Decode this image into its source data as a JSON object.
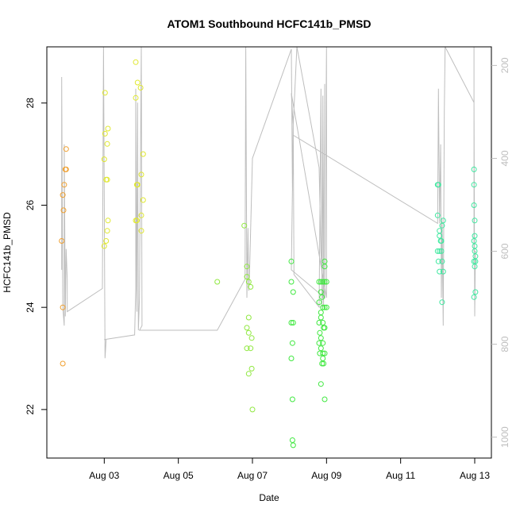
{
  "chart_data": {
    "type": "scatter",
    "title": "ATOM1 Southbound HCFC141b_PMSD",
    "xlabel": "Date",
    "ylabel": "HCFC141b_PMSD",
    "xlim": [
      1.45,
      13.45
    ],
    "ylim": [
      21.05,
      29.1
    ],
    "y2lim": [
      1045,
      160
    ],
    "x_ticks": [
      {
        "value": 3,
        "label": "Aug 03"
      },
      {
        "value": 5,
        "label": "Aug 05"
      },
      {
        "value": 7,
        "label": "Aug 07"
      },
      {
        "value": 9,
        "label": "Aug 09"
      },
      {
        "value": 11,
        "label": "Aug 11"
      },
      {
        "value": 13,
        "label": "Aug 13"
      }
    ],
    "y_ticks": [
      {
        "value": 22,
        "label": "22"
      },
      {
        "value": 24,
        "label": "24"
      },
      {
        "value": 26,
        "label": "26"
      },
      {
        "value": 28,
        "label": "28"
      }
    ],
    "y2_ticks": [
      {
        "value": 200,
        "label": "200"
      },
      {
        "value": 400,
        "label": "400"
      },
      {
        "value": 600,
        "label": "600"
      },
      {
        "value": 800,
        "label": "800"
      },
      {
        "value": 1000,
        "label": "1000"
      }
    ],
    "point_series": [
      {
        "color": "#f0a030",
        "points": [
          [
            1.88,
            22.9
          ],
          [
            1.88,
            24.0
          ],
          [
            1.85,
            25.3
          ],
          [
            1.9,
            25.9
          ],
          [
            1.88,
            26.2
          ],
          [
            1.92,
            26.4
          ],
          [
            1.95,
            26.7
          ],
          [
            1.97,
            26.7
          ],
          [
            1.97,
            27.1
          ]
        ]
      },
      {
        "color": "#e0e830",
        "points": [
          [
            3.0,
            25.2
          ],
          [
            3.05,
            25.3
          ],
          [
            3.08,
            25.5
          ],
          [
            3.1,
            25.7
          ],
          [
            3.05,
            26.5
          ],
          [
            3.08,
            26.5
          ],
          [
            3.0,
            26.9
          ],
          [
            3.08,
            27.2
          ],
          [
            3.02,
            27.4
          ],
          [
            3.1,
            27.5
          ],
          [
            3.02,
            28.2
          ],
          [
            3.85,
            25.7
          ],
          [
            3.88,
            25.7
          ],
          [
            4.0,
            25.5
          ],
          [
            4.0,
            25.8
          ],
          [
            4.05,
            26.1
          ],
          [
            3.9,
            26.4
          ],
          [
            3.88,
            26.4
          ],
          [
            4.0,
            26.6
          ],
          [
            4.05,
            27.0
          ],
          [
            3.85,
            28.1
          ],
          [
            3.9,
            28.4
          ],
          [
            3.98,
            28.3
          ],
          [
            3.85,
            28.8
          ]
        ]
      },
      {
        "color": "#90e840",
        "points": [
          [
            6.05,
            24.5
          ],
          [
            6.78,
            25.6
          ],
          [
            6.85,
            24.8
          ],
          [
            6.85,
            24.6
          ],
          [
            6.9,
            24.5
          ],
          [
            6.95,
            24.4
          ],
          [
            6.9,
            23.8
          ],
          [
            6.85,
            23.6
          ],
          [
            6.9,
            23.5
          ],
          [
            6.98,
            23.4
          ],
          [
            6.85,
            23.2
          ],
          [
            6.95,
            23.2
          ],
          [
            6.98,
            22.8
          ],
          [
            6.9,
            22.7
          ],
          [
            7.0,
            22.0
          ]
        ]
      },
      {
        "color": "#40e840",
        "points": [
          [
            8.05,
            24.9
          ],
          [
            8.05,
            24.5
          ],
          [
            8.1,
            24.3
          ],
          [
            8.05,
            23.7
          ],
          [
            8.1,
            23.7
          ],
          [
            8.08,
            23.3
          ],
          [
            8.05,
            23.0
          ],
          [
            8.08,
            22.2
          ],
          [
            8.08,
            21.4
          ],
          [
            8.1,
            21.3
          ],
          [
            8.8,
            24.5
          ],
          [
            8.85,
            24.5
          ],
          [
            8.9,
            24.5
          ],
          [
            8.95,
            24.5
          ],
          [
            8.85,
            24.3
          ],
          [
            8.88,
            24.2
          ],
          [
            8.8,
            24.1
          ],
          [
            8.9,
            24.0
          ],
          [
            8.85,
            23.9
          ],
          [
            8.95,
            24.0
          ],
          [
            8.8,
            23.7
          ],
          [
            8.9,
            23.7
          ],
          [
            8.82,
            23.5
          ],
          [
            8.92,
            23.6
          ],
          [
            8.95,
            23.6
          ],
          [
            8.85,
            23.4
          ],
          [
            8.9,
            23.3
          ],
          [
            8.85,
            23.2
          ],
          [
            8.82,
            23.1
          ],
          [
            8.9,
            23.1
          ],
          [
            8.95,
            23.1
          ],
          [
            8.88,
            22.9
          ],
          [
            8.92,
            22.9
          ],
          [
            8.85,
            22.5
          ],
          [
            8.95,
            22.2
          ],
          [
            8.95,
            24.8
          ],
          [
            8.95,
            24.9
          ],
          [
            9.0,
            24.5
          ],
          [
            8.8,
            23.3
          ],
          [
            8.9,
            23.0
          ],
          [
            8.85,
            23.8
          ],
          [
            9.0,
            24.0
          ]
        ]
      },
      {
        "color": "#40e8a0",
        "points": [
          [
            12.0,
            26.4
          ],
          [
            12.02,
            26.4
          ],
          [
            12.0,
            25.1
          ],
          [
            12.05,
            25.1
          ],
          [
            12.02,
            24.9
          ],
          [
            12.05,
            24.7
          ],
          [
            12.0,
            25.8
          ],
          [
            12.05,
            25.5
          ],
          [
            12.08,
            25.3
          ],
          [
            12.1,
            25.1
          ],
          [
            12.12,
            25.6
          ],
          [
            12.1,
            25.3
          ],
          [
            12.12,
            24.9
          ],
          [
            12.15,
            25.7
          ],
          [
            12.15,
            24.7
          ],
          [
            12.12,
            24.1
          ],
          [
            12.05,
            25.4
          ],
          [
            12.98,
            26.7
          ],
          [
            12.98,
            26.4
          ],
          [
            12.98,
            26.0
          ],
          [
            13.0,
            25.7
          ],
          [
            13.0,
            25.4
          ],
          [
            12.98,
            25.3
          ],
          [
            13.0,
            25.2
          ],
          [
            13.02,
            25.0
          ],
          [
            12.98,
            24.9
          ],
          [
            13.02,
            24.9
          ],
          [
            13.0,
            24.8
          ],
          [
            13.02,
            24.3
          ],
          [
            12.98,
            24.2
          ],
          [
            13.0,
            25.1
          ]
        ]
      }
    ],
    "line_series": {
      "color": "#bebebe",
      "points": [
        [
          1.85,
          640
        ],
        [
          1.85,
          225
        ],
        [
          1.88,
          720
        ],
        [
          1.92,
          760
        ],
        [
          1.92,
          370
        ],
        [
          1.95,
          740
        ],
        [
          1.97,
          595
        ],
        [
          2.0,
          660
        ],
        [
          2.0,
          730
        ],
        [
          2.95,
          680
        ],
        [
          2.98,
          160
        ],
        [
          3.02,
          830
        ],
        [
          3.05,
          790
        ],
        [
          3.0,
          790
        ],
        [
          3.82,
          780
        ],
        [
          3.85,
          680
        ],
        [
          3.85,
          250
        ],
        [
          3.88,
          730
        ],
        [
          3.9,
          280
        ],
        [
          3.92,
          770
        ],
        [
          3.95,
          700
        ],
        [
          4.0,
          160
        ],
        [
          4.02,
          760
        ],
        [
          3.95,
          770
        ],
        [
          6.05,
          770
        ],
        [
          6.8,
          660
        ],
        [
          6.82,
          160
        ],
        [
          6.85,
          700
        ],
        [
          6.88,
          550
        ],
        [
          6.9,
          685
        ],
        [
          6.92,
          650
        ],
        [
          7.0,
          400
        ],
        [
          8.05,
          165
        ],
        [
          8.08,
          470
        ],
        [
          8.1,
          310
        ],
        [
          8.12,
          650
        ],
        [
          8.8,
          720
        ],
        [
          8.85,
          250
        ],
        [
          8.88,
          720
        ],
        [
          8.9,
          265
        ],
        [
          8.92,
          720
        ],
        [
          8.95,
          240
        ],
        [
          8.92,
          680
        ],
        [
          8.95,
          700
        ],
        [
          9.0,
          160
        ],
        [
          9.0,
          700
        ],
        [
          8.05,
          260
        ],
        [
          8.1,
          330
        ],
        [
          8.2,
          160
        ],
        [
          8.8,
          420
        ],
        [
          8.85,
          600
        ],
        [
          8.9,
          700
        ],
        [
          8.95,
          700
        ],
        [
          8.05,
          640
        ],
        [
          8.1,
          350
        ],
        [
          12.0,
          540
        ],
        [
          12.02,
          250
        ],
        [
          12.05,
          540
        ],
        [
          12.08,
          370
        ],
        [
          12.1,
          700
        ],
        [
          12.12,
          530
        ],
        [
          12.15,
          760
        ],
        [
          12.18,
          300
        ],
        [
          12.2,
          160
        ],
        [
          12.98,
          280
        ],
        [
          13.0,
          740
        ],
        [
          13.02,
          600
        ],
        [
          12.98,
          600
        ],
        [
          12.98,
          160
        ]
      ]
    }
  }
}
